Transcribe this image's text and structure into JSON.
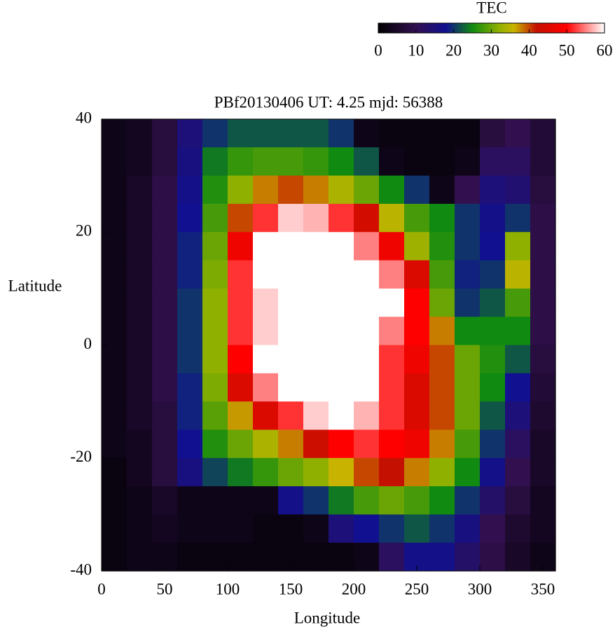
{
  "chart_data": {
    "type": "heatmap",
    "title": "PBf20130406  UT: 4.25  mjd: 56388",
    "x_label": "Longitude",
    "y_label": "Latitude",
    "colorbar_label": "TEC",
    "colorbar_lim": [
      0,
      60
    ],
    "colorbar_ticks": [
      0,
      10,
      20,
      30,
      40,
      50,
      60
    ],
    "colormap": [
      {
        "value": 0,
        "color": "#000000"
      },
      {
        "value": 10,
        "color": "#32104f"
      },
      {
        "value": 18,
        "color": "#101090"
      },
      {
        "value": 25,
        "color": "#108a10"
      },
      {
        "value": 32,
        "color": "#90b000"
      },
      {
        "value": 36,
        "color": "#c8b400"
      },
      {
        "value": 42,
        "color": "#c41000"
      },
      {
        "value": 50,
        "color": "#ff0000"
      },
      {
        "value": 56,
        "color": "#ff9a9a"
      },
      {
        "value": 60,
        "color": "#ffffff"
      }
    ],
    "xlim": [
      0,
      360
    ],
    "xticks": [
      0,
      50,
      100,
      150,
      200,
      250,
      300,
      350
    ],
    "ylim": [
      -40,
      40
    ],
    "yticks": [
      -40,
      -20,
      0,
      20,
      40
    ],
    "x": [
      10,
      30,
      50,
      70,
      90,
      110,
      130,
      150,
      170,
      190,
      210,
      230,
      250,
      270,
      290,
      310,
      330,
      350
    ],
    "y": [
      37.5,
      32.5,
      27.5,
      22.5,
      17.5,
      12.5,
      7.5,
      2.5,
      -2.5,
      -7.5,
      -12.5,
      -17.5,
      -22.5,
      -27.5,
      -32.5,
      -37.5
    ],
    "values": [
      [
        3,
        4,
        8,
        15,
        20,
        22,
        22,
        22,
        22,
        20,
        3,
        2,
        2,
        2,
        2,
        8,
        10,
        7
      ],
      [
        3,
        4,
        8,
        16,
        24,
        27,
        28,
        28,
        27,
        25,
        22,
        3,
        2,
        2,
        3,
        12,
        12,
        7
      ],
      [
        3,
        5,
        9,
        17,
        26,
        32,
        38,
        40,
        38,
        34,
        30,
        25,
        20,
        3,
        10,
        15,
        14,
        8
      ],
      [
        3,
        5,
        9,
        18,
        28,
        40,
        52,
        58,
        57,
        52,
        44,
        35,
        28,
        25,
        20,
        17,
        20,
        9
      ],
      [
        3,
        5,
        9,
        19,
        30,
        48,
        60,
        60,
        60,
        60,
        55,
        48,
        33,
        26,
        20,
        18,
        32,
        9
      ],
      [
        3,
        5,
        9,
        19,
        31,
        52,
        60,
        60,
        60,
        60,
        60,
        55,
        45,
        28,
        19,
        20,
        35,
        9
      ],
      [
        3,
        5,
        9,
        20,
        32,
        52,
        58,
        60,
        60,
        60,
        60,
        60,
        50,
        30,
        20,
        22,
        28,
        9
      ],
      [
        3,
        5,
        9,
        20,
        32,
        52,
        58,
        60,
        60,
        60,
        60,
        55,
        50,
        38,
        25,
        25,
        25,
        9
      ],
      [
        3,
        5,
        9,
        20,
        32,
        50,
        60,
        60,
        60,
        60,
        60,
        52,
        48,
        40,
        30,
        26,
        22,
        8
      ],
      [
        3,
        5,
        9,
        19,
        31,
        45,
        55,
        60,
        60,
        60,
        60,
        52,
        45,
        40,
        30,
        25,
        18,
        7
      ],
      [
        3,
        5,
        8,
        19,
        29,
        37,
        45,
        52,
        58,
        60,
        57,
        52,
        45,
        40,
        30,
        22,
        15,
        6
      ],
      [
        3,
        4,
        8,
        18,
        26,
        30,
        34,
        38,
        43,
        50,
        52,
        50,
        48,
        38,
        28,
        20,
        12,
        5
      ],
      [
        2,
        4,
        8,
        16,
        21,
        24,
        27,
        30,
        32,
        36,
        40,
        42,
        38,
        32,
        25,
        17,
        10,
        5
      ],
      [
        2,
        3,
        5,
        3,
        3,
        3,
        3,
        17,
        20,
        24,
        28,
        30,
        28,
        25,
        20,
        13,
        8,
        4
      ],
      [
        2,
        3,
        4,
        3,
        3,
        3,
        2,
        2,
        3,
        15,
        18,
        20,
        22,
        20,
        16,
        10,
        6,
        4
      ],
      [
        2,
        3,
        3,
        2,
        2,
        2,
        2,
        2,
        2,
        2,
        3,
        12,
        17,
        17,
        13,
        9,
        5,
        3
      ]
    ]
  }
}
